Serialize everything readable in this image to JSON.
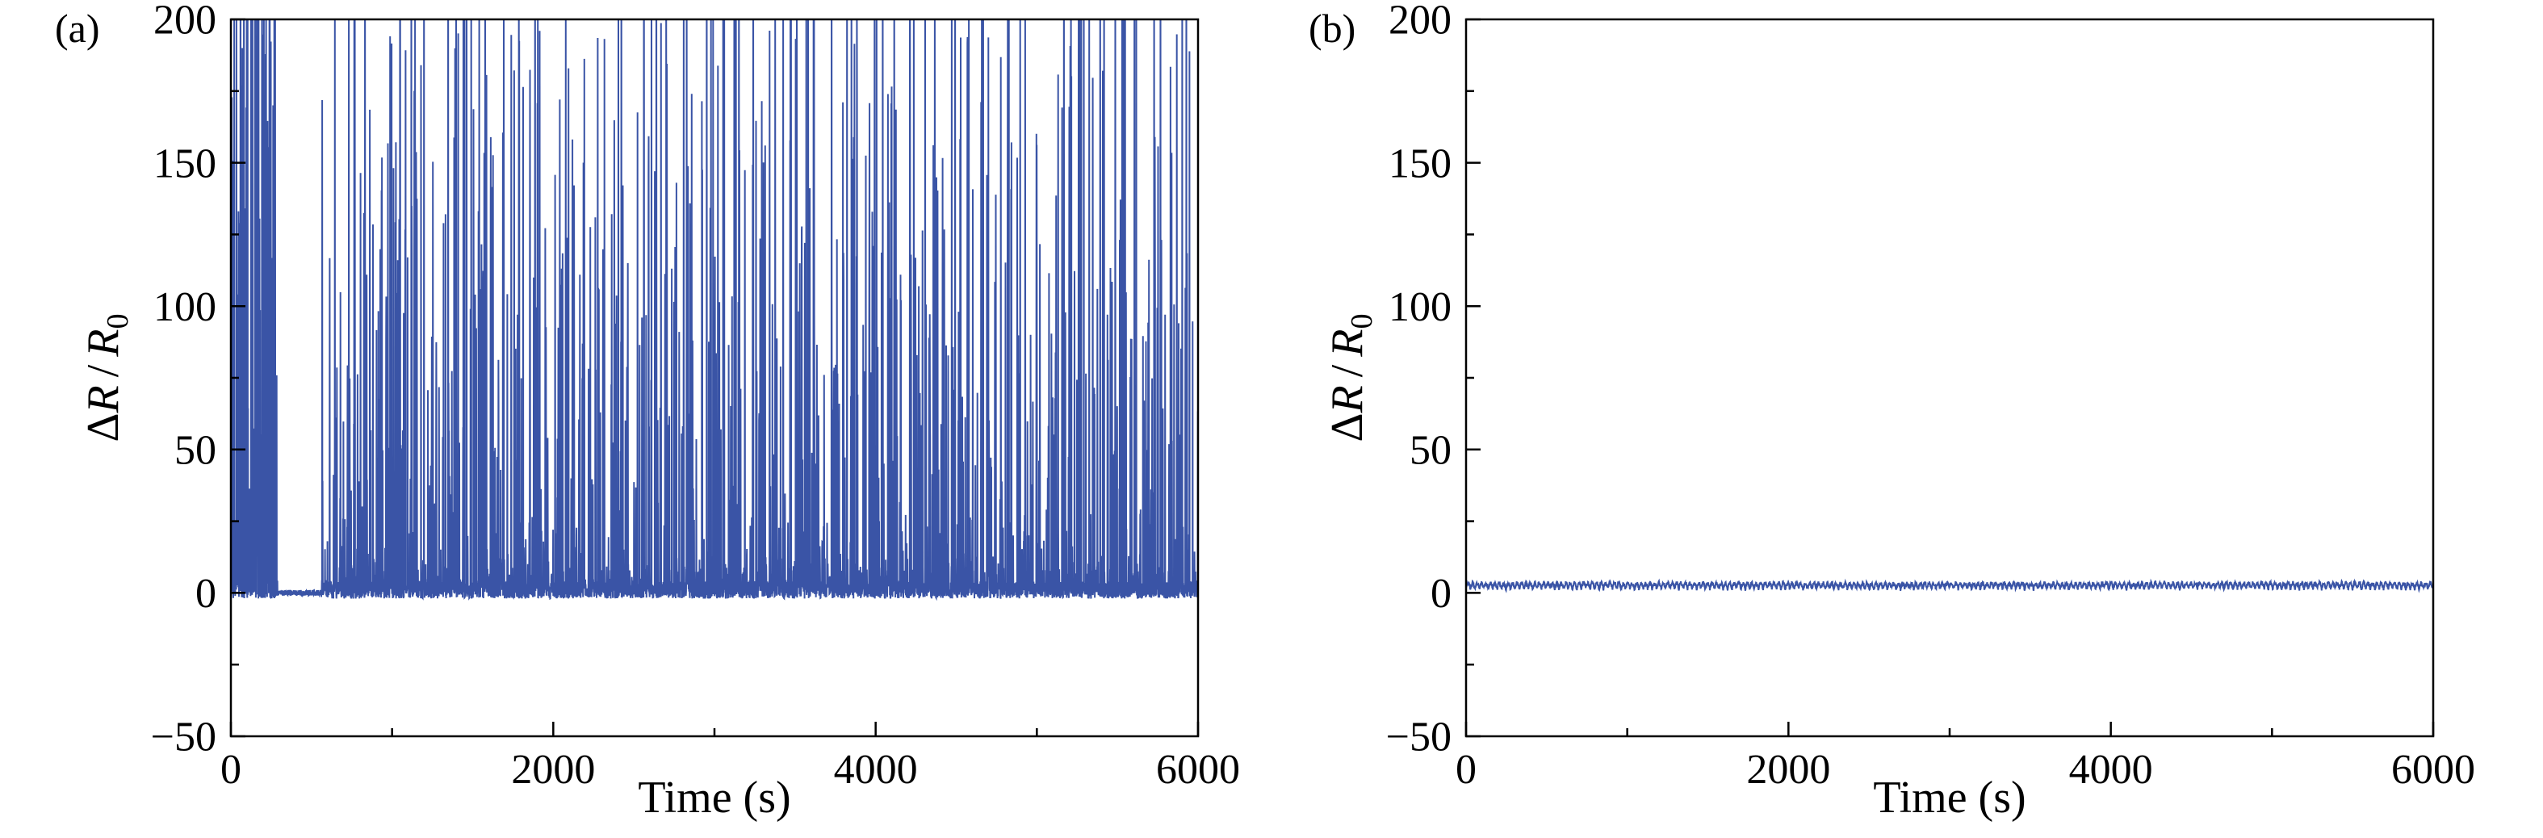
{
  "labels": {
    "delta": "Δ",
    "R": "R",
    "slash": "/",
    "zero": "0"
  },
  "chart_data": [
    {
      "type": "line",
      "panel_label": "(a)",
      "title": "",
      "xlabel": "Time (s)",
      "ylabel": "ΔR / R₀",
      "xlim": [
        0,
        6000
      ],
      "ylim": [
        -50,
        200
      ],
      "x_ticks": [
        0,
        2000,
        4000,
        6000
      ],
      "y_ticks": [
        -50,
        0,
        50,
        100,
        150,
        200
      ],
      "x_minor_step": 1000,
      "y_minor_step": 25,
      "grid": false,
      "legend": "none",
      "line_color": "#3a54a6",
      "axis_color": "#000000",
      "signal": {
        "kind": "noisy-spike-train",
        "description": "Dense train of sharp resistance spikes from a noisy baseline near 0; many spikes exceed the 200 axis limit and are clipped by the frame; quiet interval with no spikes near t=300-560 s.",
        "n_points": 5200,
        "baseline": 1.0,
        "baseline_noise": 3.0,
        "spike_probability": 0.27,
        "spike_height_min": 5,
        "spike_height_max": 280,
        "spike_shape_exponent": 3.6,
        "initial_burst": {
          "until": 260,
          "probability": 0.5,
          "exponent": 2.2
        },
        "quiet_interval": [
          290,
          560
        ],
        "quiet_noise": 1.0,
        "clip_max": 200,
        "seed": 1337
      }
    },
    {
      "type": "line",
      "panel_label": "(b)",
      "title": "",
      "xlabel": "Time (s)",
      "ylabel": "ΔR / R₀",
      "xlim": [
        0,
        6000
      ],
      "ylim": [
        -50,
        200
      ],
      "x_ticks": [
        0,
        2000,
        4000,
        6000
      ],
      "y_ticks": [
        -50,
        0,
        50,
        100,
        150,
        200
      ],
      "x_minor_step": 1000,
      "y_minor_step": 25,
      "grid": false,
      "legend": "none",
      "line_color": "#3a54a6",
      "axis_color": "#000000",
      "signal": {
        "kind": "flat-band",
        "description": "Stable flat response: narrow band of small oscillations centered near ΔR/R₀ ≈ 2 across the whole 0-6000 s range.",
        "n_points": 3000,
        "baseline": 1.4,
        "baseline_noise": 0.7,
        "ripple_amplitude": 2.0,
        "ripple_period": 55,
        "seed": 2024
      }
    }
  ]
}
